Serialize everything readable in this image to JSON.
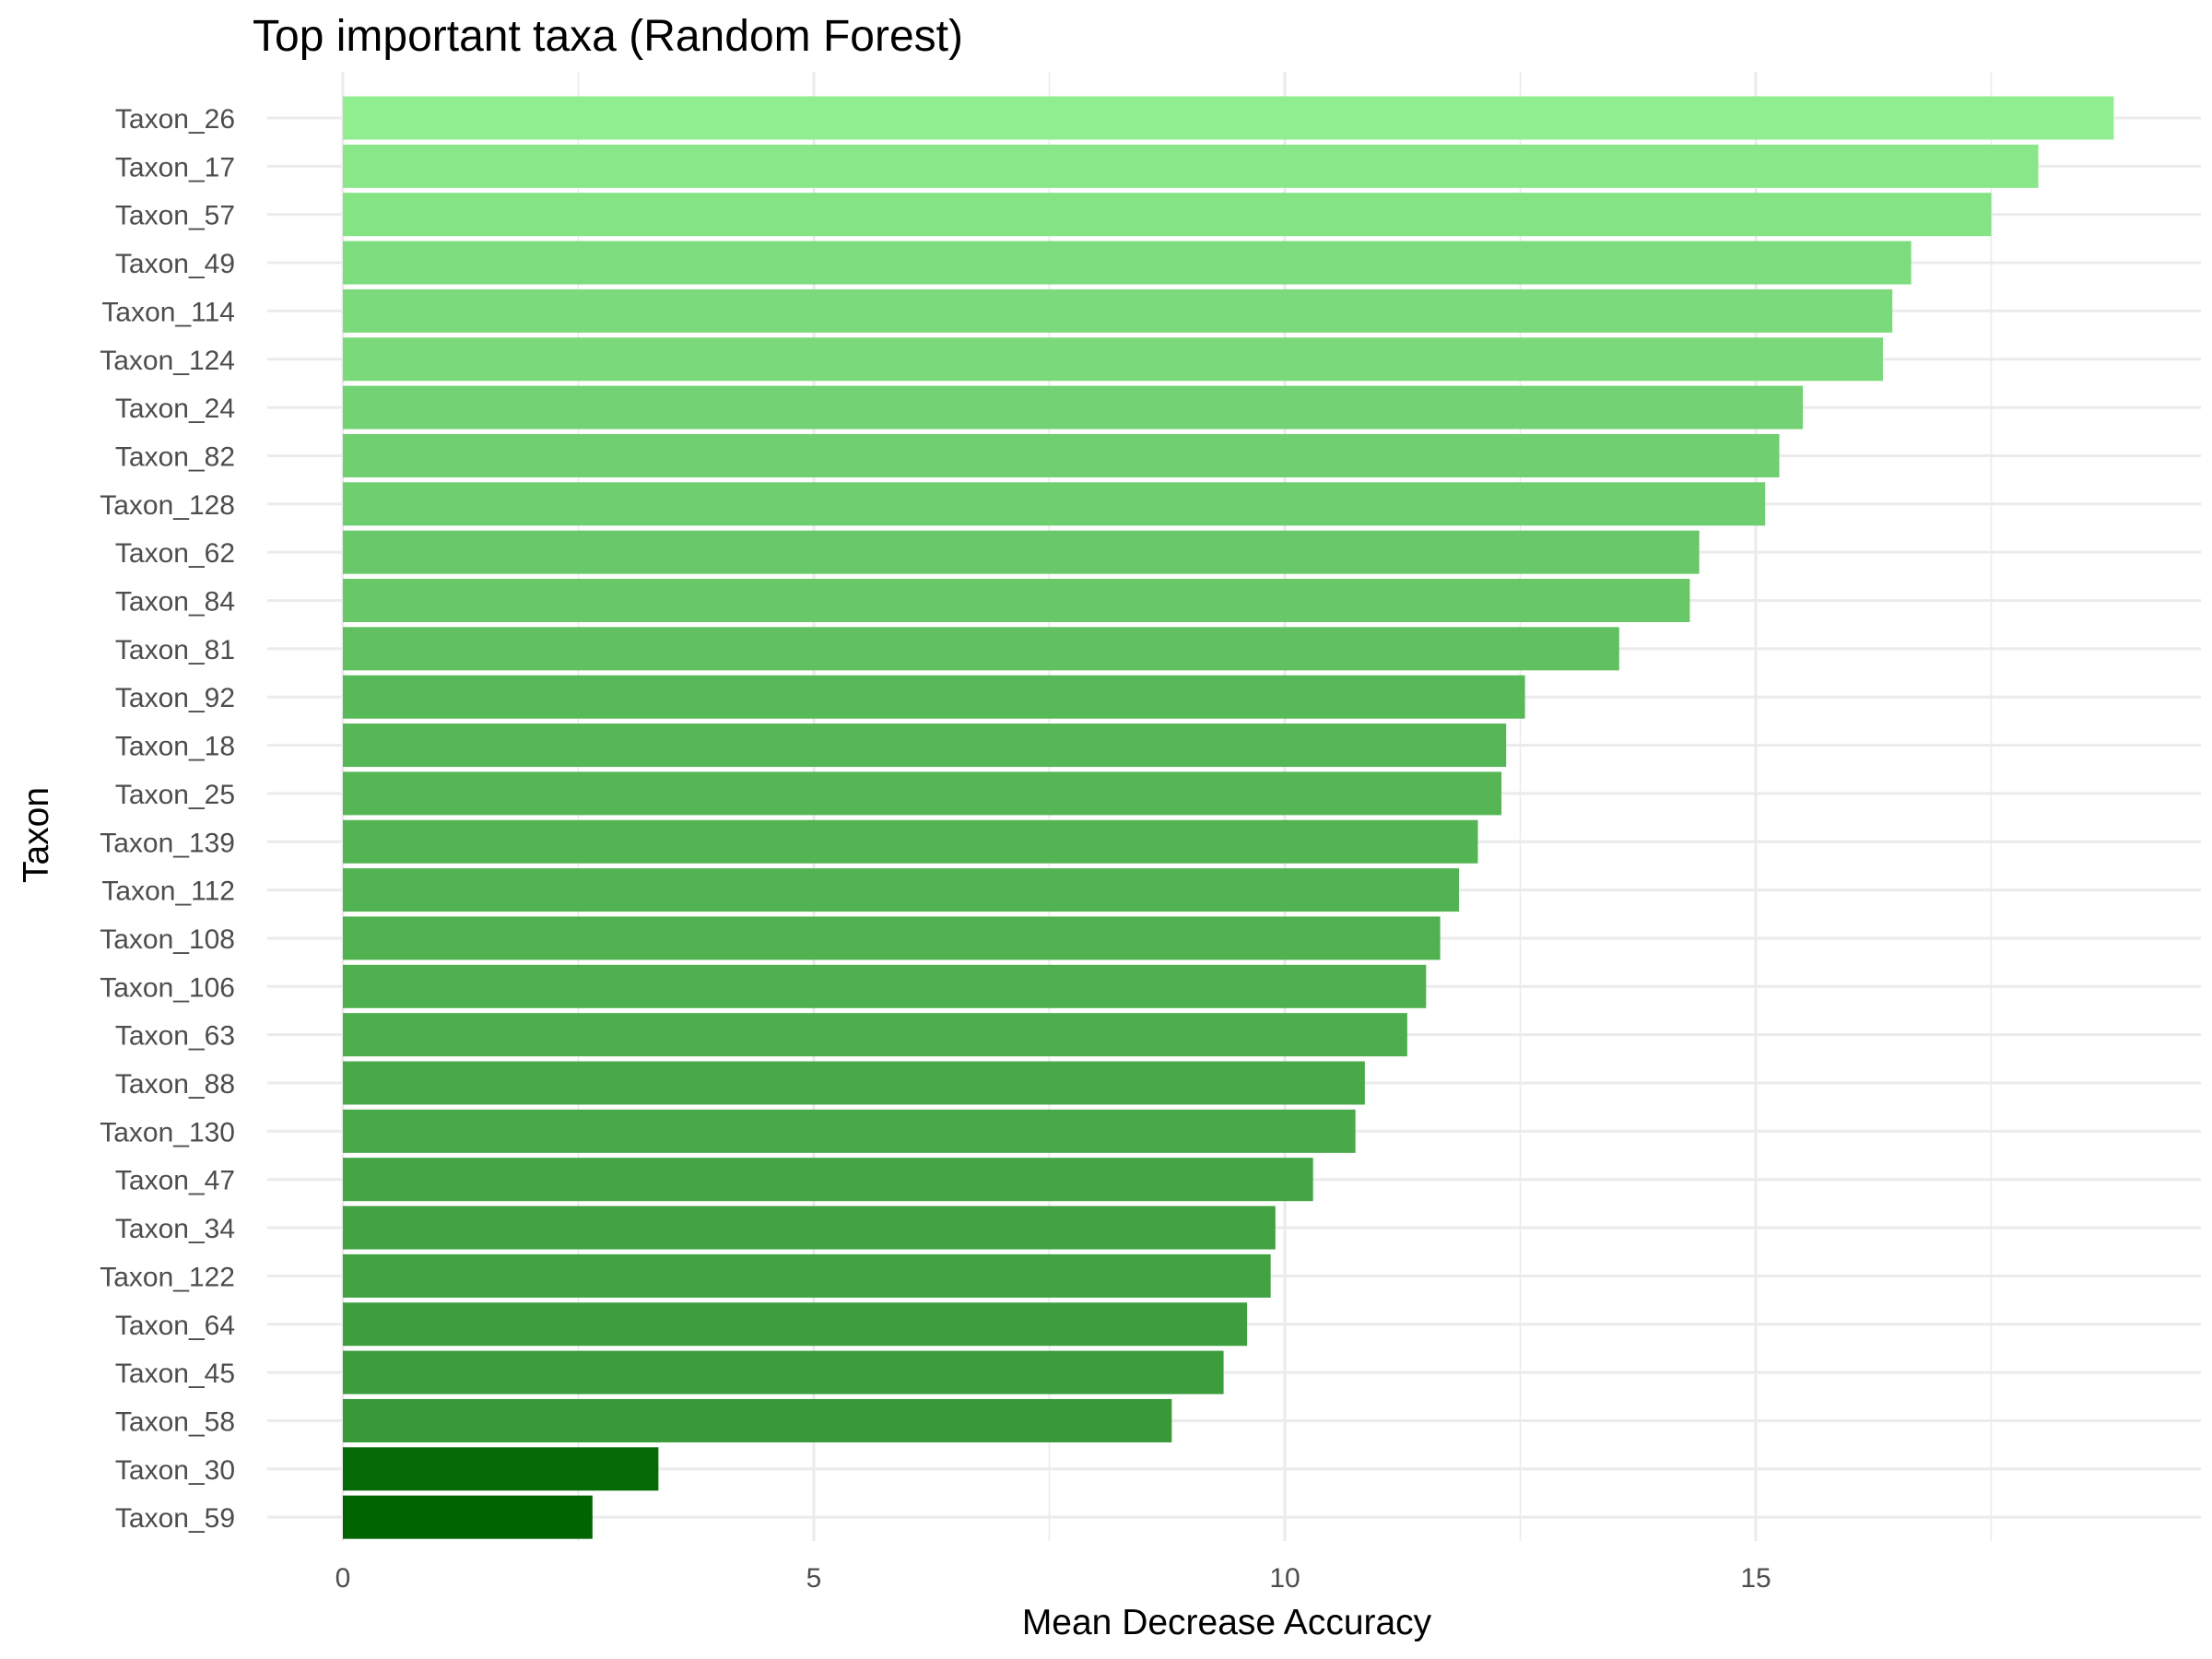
{
  "chart_data": {
    "type": "bar",
    "orientation": "horizontal",
    "title": "Top important taxa (Random Forest)",
    "xlabel": "Mean Decrease Accuracy",
    "ylabel": "Taxon",
    "xlim": [
      0,
      19.8
    ],
    "xticks": [
      0,
      5,
      10,
      15
    ],
    "grid": true,
    "legend": "none",
    "color_low": "#006400",
    "color_high": "#90ee90",
    "categories": [
      "Taxon_26",
      "Taxon_17",
      "Taxon_57",
      "Taxon_49",
      "Taxon_114",
      "Taxon_124",
      "Taxon_24",
      "Taxon_82",
      "Taxon_128",
      "Taxon_62",
      "Taxon_84",
      "Taxon_81",
      "Taxon_92",
      "Taxon_18",
      "Taxon_25",
      "Taxon_139",
      "Taxon_112",
      "Taxon_108",
      "Taxon_106",
      "Taxon_63",
      "Taxon_88",
      "Taxon_130",
      "Taxon_47",
      "Taxon_34",
      "Taxon_122",
      "Taxon_64",
      "Taxon_45",
      "Taxon_58",
      "Taxon_30",
      "Taxon_59"
    ],
    "values": [
      18.8,
      18.0,
      17.5,
      16.65,
      16.45,
      16.35,
      15.5,
      15.25,
      15.1,
      14.4,
      14.3,
      13.55,
      12.55,
      12.35,
      12.3,
      12.05,
      11.85,
      11.65,
      11.5,
      11.3,
      10.85,
      10.75,
      10.3,
      9.9,
      9.85,
      9.6,
      9.35,
      8.8,
      3.35,
      2.65
    ]
  }
}
